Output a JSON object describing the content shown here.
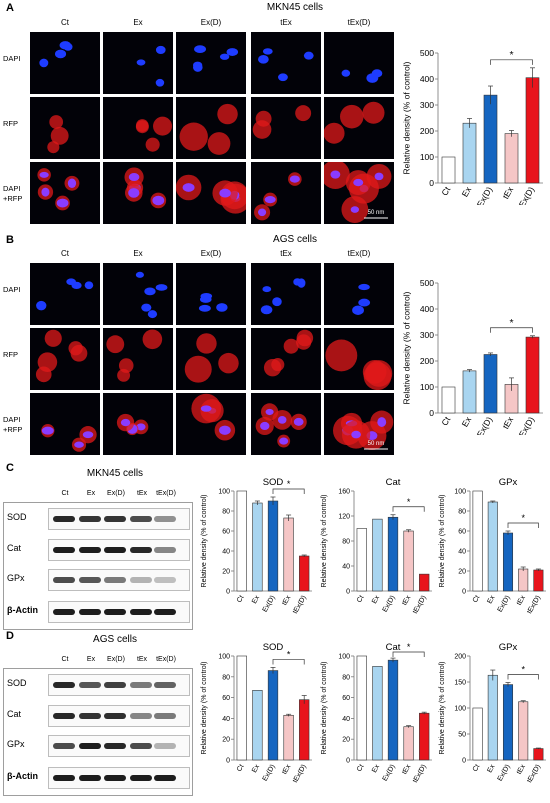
{
  "panels": {
    "A": {
      "letter": "A",
      "title": "MKN45 cells",
      "columns": [
        "Ct",
        "Ex",
        "Ex(D)",
        "tEx",
        "tEx(D)"
      ],
      "rows": [
        "DAPI",
        "RFP",
        "DAPI\n+RFP"
      ],
      "scale_bar": "50 nm"
    },
    "B": {
      "letter": "B",
      "title": "AGS cells",
      "columns": [
        "Ct",
        "Ex",
        "Ex(D)",
        "tEx",
        "tEx(D)"
      ],
      "rows": [
        "DAPI",
        "RFP",
        "DAPI\n+RFP"
      ],
      "scale_bar": "50 nm"
    },
    "C": {
      "letter": "C",
      "title": "MKN45 cells",
      "lanes": [
        "Ct",
        "Ex",
        "Ex(D)",
        "tEx",
        "tEx(D)"
      ],
      "blots": [
        "SOD",
        "Cat",
        "GPx",
        "β-Actin"
      ]
    },
    "D": {
      "letter": "D",
      "title": "AGS cells",
      "lanes": [
        "Ct",
        "Ex",
        "Ex(D)",
        "tEx",
        "tEx(D)"
      ],
      "blots": [
        "SOD",
        "Cat",
        "GPx",
        "β-Actin"
      ]
    }
  },
  "colors": {
    "Ct": "#ffffff",
    "Ex": "#a9d5f0",
    "Ex(D)": "#1565c0",
    "tEx": "#f5c6c6",
    "tEx(D)": "#e8141c",
    "dapi": "#1e3cff",
    "rfp": "#e21a1a"
  },
  "chart_data": [
    {
      "id": "A",
      "type": "bar",
      "categories": [
        "Ct",
        "Ex",
        "Ex(D)",
        "tEx",
        "tEx(D)"
      ],
      "values": [
        100,
        230,
        338,
        190,
        405
      ],
      "errors": [
        0,
        18,
        35,
        12,
        38
      ],
      "title": "",
      "xlabel": "",
      "ylabel": "Relative density (% of control)",
      "ylim": [
        0,
        500
      ],
      "yticks": [
        0,
        100,
        200,
        300,
        400,
        500
      ],
      "significance": {
        "from": "Ex(D)",
        "to": "tEx(D)",
        "label": "*"
      }
    },
    {
      "id": "B",
      "type": "bar",
      "categories": [
        "Ct",
        "Ex",
        "Ex(D)",
        "tEx",
        "tEx(D)"
      ],
      "values": [
        100,
        162,
        225,
        110,
        292
      ],
      "errors": [
        0,
        5,
        6,
        25,
        5
      ],
      "title": "",
      "xlabel": "",
      "ylabel": "Relative density (% of control)",
      "ylim": [
        0,
        500
      ],
      "yticks": [
        0,
        100,
        200,
        300,
        400,
        500
      ],
      "significance": {
        "from": "Ex(D)",
        "to": "tEx(D)",
        "label": "*"
      }
    },
    {
      "id": "C-SOD",
      "type": "bar",
      "categories": [
        "Ct",
        "Ex",
        "Ex(D)",
        "tEx",
        "tEx(D)"
      ],
      "values": [
        100,
        88,
        90,
        73,
        35
      ],
      "errors": [
        0,
        2,
        4,
        3,
        1
      ],
      "title": "SOD",
      "xlabel": "",
      "ylabel": "Relative density (% of control)",
      "ylim": [
        0,
        100
      ],
      "yticks": [
        0,
        20,
        40,
        60,
        80,
        100
      ],
      "significance": {
        "from": "Ex(D)",
        "to": "tEx(D)",
        "label": "*"
      }
    },
    {
      "id": "C-Cat",
      "type": "bar",
      "categories": [
        "Ct",
        "Ex",
        "Ex(D)",
        "tEx",
        "tEx(D)"
      ],
      "values": [
        100,
        115,
        118,
        96,
        27
      ],
      "errors": [
        0,
        0,
        4,
        2,
        0
      ],
      "title": "Cat",
      "xlabel": "",
      "ylabel": "Relative density (% of control)",
      "ylim": [
        0,
        160
      ],
      "yticks": [
        0,
        40,
        80,
        120,
        160
      ],
      "significance": {
        "from": "Ex(D)",
        "to": "tEx(D)",
        "label": "*"
      }
    },
    {
      "id": "C-GPx",
      "type": "bar",
      "categories": [
        "Ct",
        "Ex",
        "Ex(D)",
        "tEx",
        "tEx(D)"
      ],
      "values": [
        100,
        89,
        58,
        22,
        21
      ],
      "errors": [
        0,
        1,
        2,
        2,
        1
      ],
      "title": "GPx",
      "xlabel": "",
      "ylabel": "Relative density (% of control)",
      "ylim": [
        0,
        100
      ],
      "yticks": [
        0,
        20,
        40,
        60,
        80,
        100
      ],
      "significance": {
        "from": "Ex(D)",
        "to": "tEx(D)",
        "label": "*"
      }
    },
    {
      "id": "D-SOD",
      "type": "bar",
      "categories": [
        "Ct",
        "Ex",
        "Ex(D)",
        "tEx",
        "tEx(D)"
      ],
      "values": [
        100,
        67,
        86,
        43,
        58
      ],
      "errors": [
        0,
        0,
        3,
        1,
        4
      ],
      "title": "SOD",
      "xlabel": "",
      "ylabel": "Relative density (% of control)",
      "ylim": [
        0,
        100
      ],
      "yticks": [
        0,
        20,
        40,
        60,
        80,
        100
      ],
      "significance": {
        "from": "Ex(D)",
        "to": "tEx(D)",
        "label": "*"
      }
    },
    {
      "id": "D-Cat",
      "type": "bar",
      "categories": [
        "Ct",
        "Ex",
        "Ex(D)",
        "tEx",
        "tEx(D)"
      ],
      "values": [
        100,
        90,
        96,
        32,
        45
      ],
      "errors": [
        0,
        0,
        2,
        1,
        1
      ],
      "title": "Cat",
      "xlabel": "",
      "ylabel": "Relative density (% of control)",
      "ylim": [
        0,
        100
      ],
      "yticks": [
        0,
        20,
        40,
        60,
        80,
        100
      ],
      "significance": {
        "from": "Ex(D)",
        "to": "tEx(D)",
        "label": "*"
      }
    },
    {
      "id": "D-GPx",
      "type": "bar",
      "categories": [
        "Ct",
        "Ex",
        "Ex(D)",
        "tEx",
        "tEx(D)"
      ],
      "values": [
        100,
        163,
        145,
        112,
        22
      ],
      "errors": [
        0,
        10,
        4,
        2,
        1
      ],
      "title": "GPx",
      "xlabel": "",
      "ylabel": "Relative density (% of control)",
      "ylim": [
        0,
        200
      ],
      "yticks": [
        0,
        50,
        100,
        150,
        200
      ],
      "significance": {
        "from": "Ex(D)",
        "to": "tEx(D)",
        "label": "*"
      }
    }
  ]
}
